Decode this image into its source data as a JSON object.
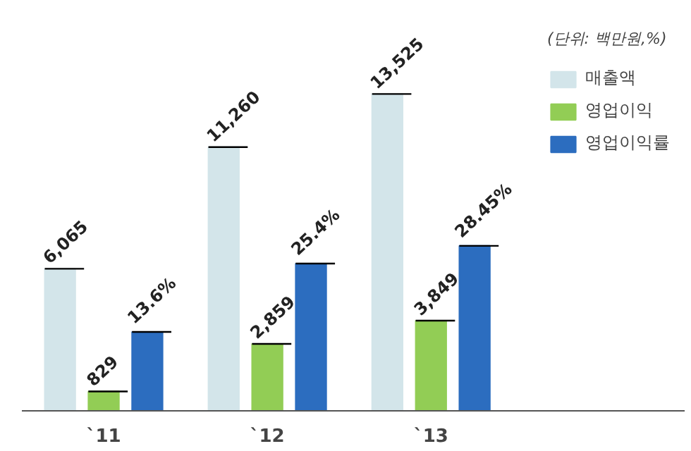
{
  "chart_data": {
    "type": "bar",
    "categories": [
      "`11",
      "`12",
      "`13"
    ],
    "legend_title": "(단위: 백만원,%)",
    "legend": "top right",
    "tick_labels": "x",
    "series": [
      {
        "name": "매출액",
        "color": "#d3e5ea",
        "values": [
          6065,
          11260,
          13525
        ],
        "value_labels": [
          "6,065",
          "11,260",
          "13,525"
        ]
      },
      {
        "name": "영업이익",
        "color": "#92cd55",
        "values": [
          829,
          2859,
          3849
        ],
        "value_labels": [
          "829",
          "2,859",
          "3,849"
        ]
      },
      {
        "name": "영업이익률",
        "color": "#2c6dbf",
        "values": [
          13.6,
          25.4,
          28.45
        ],
        "value_labels": [
          "13.6%",
          "25.4%",
          "28.45%"
        ],
        "axis": "y2"
      }
    ]
  }
}
